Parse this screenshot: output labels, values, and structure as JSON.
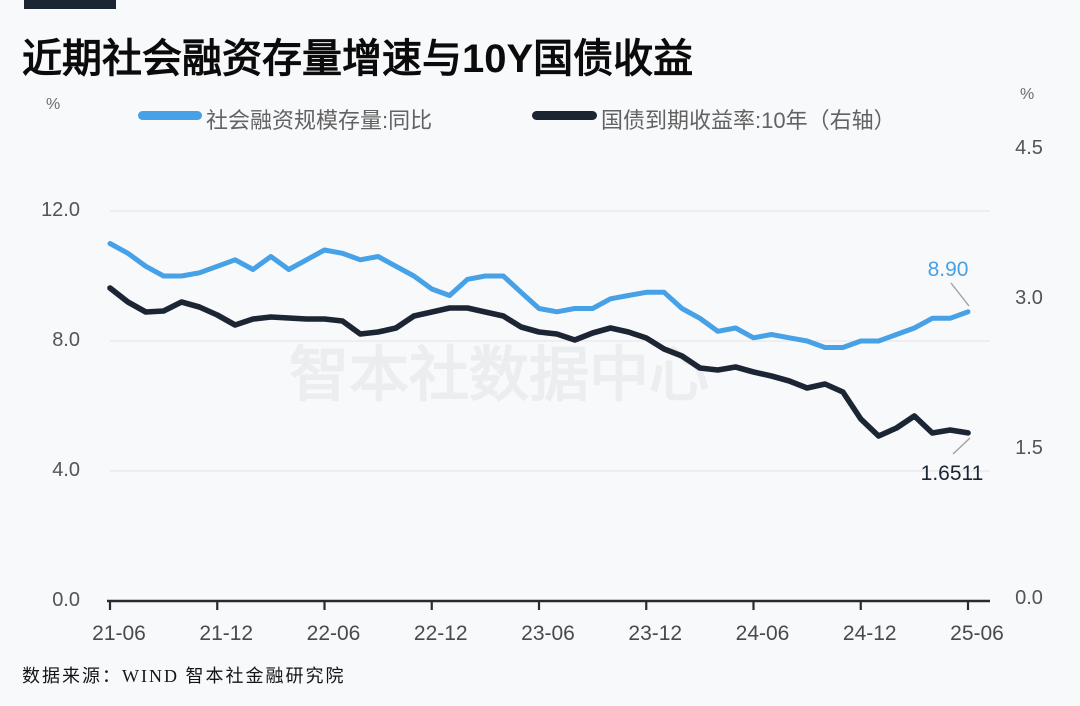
{
  "header": {
    "title": "近期社会融资存量增速与10Y国债收益"
  },
  "legend": {
    "left_unit": "%",
    "right_unit": "%",
    "items": [
      {
        "label": "社会融资规模存量:同比",
        "color": "#47a1e6"
      },
      {
        "label": "国债到期收益率:10年（右轴）",
        "color": "#1b2534"
      }
    ]
  },
  "annotations": {
    "series1_last_label": "8.90",
    "series2_last_label": "1.6511"
  },
  "watermark": "智本社数据中心",
  "footer": {
    "source": "数据来源：WIND 智本社金融研究院"
  },
  "colors": {
    "background": "#f8f9fb",
    "series1": "#47a1e6",
    "series2": "#1b2534",
    "grid": "#e7e8ea",
    "axis": "#2b2b2b",
    "leader": "#a0a0a0",
    "accent_bar": "#1b2534"
  },
  "chart_data": {
    "type": "line",
    "title": "近期社会融资存量增速与10Y国债收益",
    "x_frequency": "monthly",
    "x_start": "2021-06",
    "x_end": "2025-06",
    "x_tick_labels": [
      "21-06",
      "21-12",
      "22-06",
      "22-12",
      "23-06",
      "23-12",
      "24-06",
      "24-12",
      "25-06"
    ],
    "left_axis": {
      "unit": "%",
      "ticks": [
        12.0,
        8.0,
        4.0,
        0.0
      ],
      "tick_labels": [
        "12.0",
        "8.0",
        "4.0",
        "0.0"
      ]
    },
    "right_axis": {
      "unit": "%",
      "ticks": [
        4.5,
        3.0,
        1.5,
        0.0
      ],
      "tick_labels": [
        "4.5",
        "3.0",
        "1.5",
        "0.0"
      ]
    },
    "grid": "horizontal-left-axis-only",
    "legend_position": "top",
    "series": [
      {
        "name": "社会融资规模存量:同比",
        "axis": "left",
        "color": "#47a1e6",
        "last_value_label": "8.90",
        "values": [
          11.0,
          10.7,
          10.3,
          10.0,
          10.0,
          10.1,
          10.3,
          10.5,
          10.2,
          10.6,
          10.2,
          10.5,
          10.8,
          10.7,
          10.5,
          10.6,
          10.3,
          10.0,
          9.6,
          9.4,
          9.9,
          10.0,
          10.0,
          9.5,
          9.0,
          8.9,
          9.0,
          9.0,
          9.3,
          9.4,
          9.5,
          9.5,
          9.0,
          8.7,
          8.3,
          8.4,
          8.1,
          8.2,
          8.1,
          8.0,
          7.8,
          7.8,
          8.0,
          8.0,
          8.2,
          8.4,
          8.7,
          8.7,
          8.9
        ]
      },
      {
        "name": "国债到期收益率:10年（右轴）",
        "axis": "right",
        "color": "#1b2534",
        "last_value_label": "1.6511",
        "values": [
          3.1,
          2.96,
          2.86,
          2.87,
          2.96,
          2.91,
          2.83,
          2.73,
          2.79,
          2.81,
          2.8,
          2.79,
          2.79,
          2.77,
          2.64,
          2.66,
          2.7,
          2.82,
          2.86,
          2.9,
          2.9,
          2.86,
          2.82,
          2.71,
          2.66,
          2.64,
          2.58,
          2.65,
          2.7,
          2.66,
          2.6,
          2.49,
          2.42,
          2.3,
          2.28,
          2.31,
          2.26,
          2.22,
          2.17,
          2.1,
          2.14,
          2.06,
          1.79,
          1.62,
          1.7,
          1.82,
          1.65,
          1.68,
          1.6511
        ]
      }
    ]
  }
}
